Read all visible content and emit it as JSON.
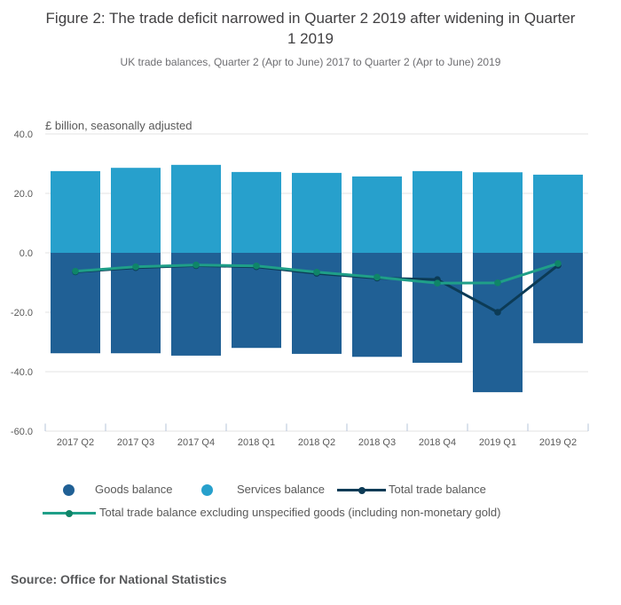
{
  "header": {
    "title": "Figure 2: The trade deficit narrowed in Quarter 2 2019 after widening in Quarter 1 2019",
    "subtitle": "UK trade balances, Quarter 2 (Apr to June) 2017 to Quarter 2 (Apr to June) 2019"
  },
  "chart_data": {
    "type": "bar",
    "title": "Figure 2: The trade deficit narrowed in Quarter 2 2019 after widening in Quarter 1 2019",
    "categories": [
      "2017 Q2",
      "2017 Q3",
      "2017 Q4",
      "2018 Q1",
      "2018 Q2",
      "2018 Q3",
      "2018 Q4",
      "2019 Q1",
      "2019 Q2"
    ],
    "series": [
      {
        "name": "Goods balance",
        "type": "bar",
        "color": "#206095",
        "values": [
          -33.8,
          -33.8,
          -34.6,
          -32.0,
          -34.0,
          -35.0,
          -37.0,
          -46.9,
          -30.4
        ]
      },
      {
        "name": "Services balance",
        "type": "bar",
        "color": "#27a0cc",
        "values": [
          27.5,
          28.6,
          29.6,
          27.2,
          26.9,
          25.7,
          27.5,
          27.1,
          26.3
        ]
      },
      {
        "name": "Total trade balance",
        "type": "line",
        "color": "#0c3b56",
        "marker_color": "#0c3b56",
        "values": [
          -6.4,
          -5.0,
          -4.3,
          -4.7,
          -6.9,
          -8.5,
          -9.0,
          -20.0,
          -4.2
        ]
      },
      {
        "name": "Total trade balance excluding unspecified goods (including non-monetary gold)",
        "type": "line",
        "color": "#1f9f88",
        "marker_color": "#0f8568",
        "values": [
          -6.2,
          -4.7,
          -4.1,
          -4.4,
          -6.5,
          -8.2,
          -10.2,
          -10.1,
          -3.6
        ]
      }
    ],
    "xlabel": "",
    "ylabel": "£ billion, seasonally adjusted",
    "ylim": [
      -60,
      40
    ],
    "y_ticks": [
      "40.0",
      "20.0",
      "0.0",
      "-20.0",
      "-40.0",
      "-60.0"
    ],
    "y_tick_values": [
      40,
      20,
      0,
      -20,
      -40,
      -60
    ],
    "grid": true,
    "legend_position": "bottom"
  },
  "colors": {
    "axis_text": "#595959",
    "grid": "#e3e3e3",
    "tick": "#b6c4da",
    "title": "#414042",
    "subtitle": "#6e6e72"
  },
  "source": "Source: Office for National Statistics"
}
